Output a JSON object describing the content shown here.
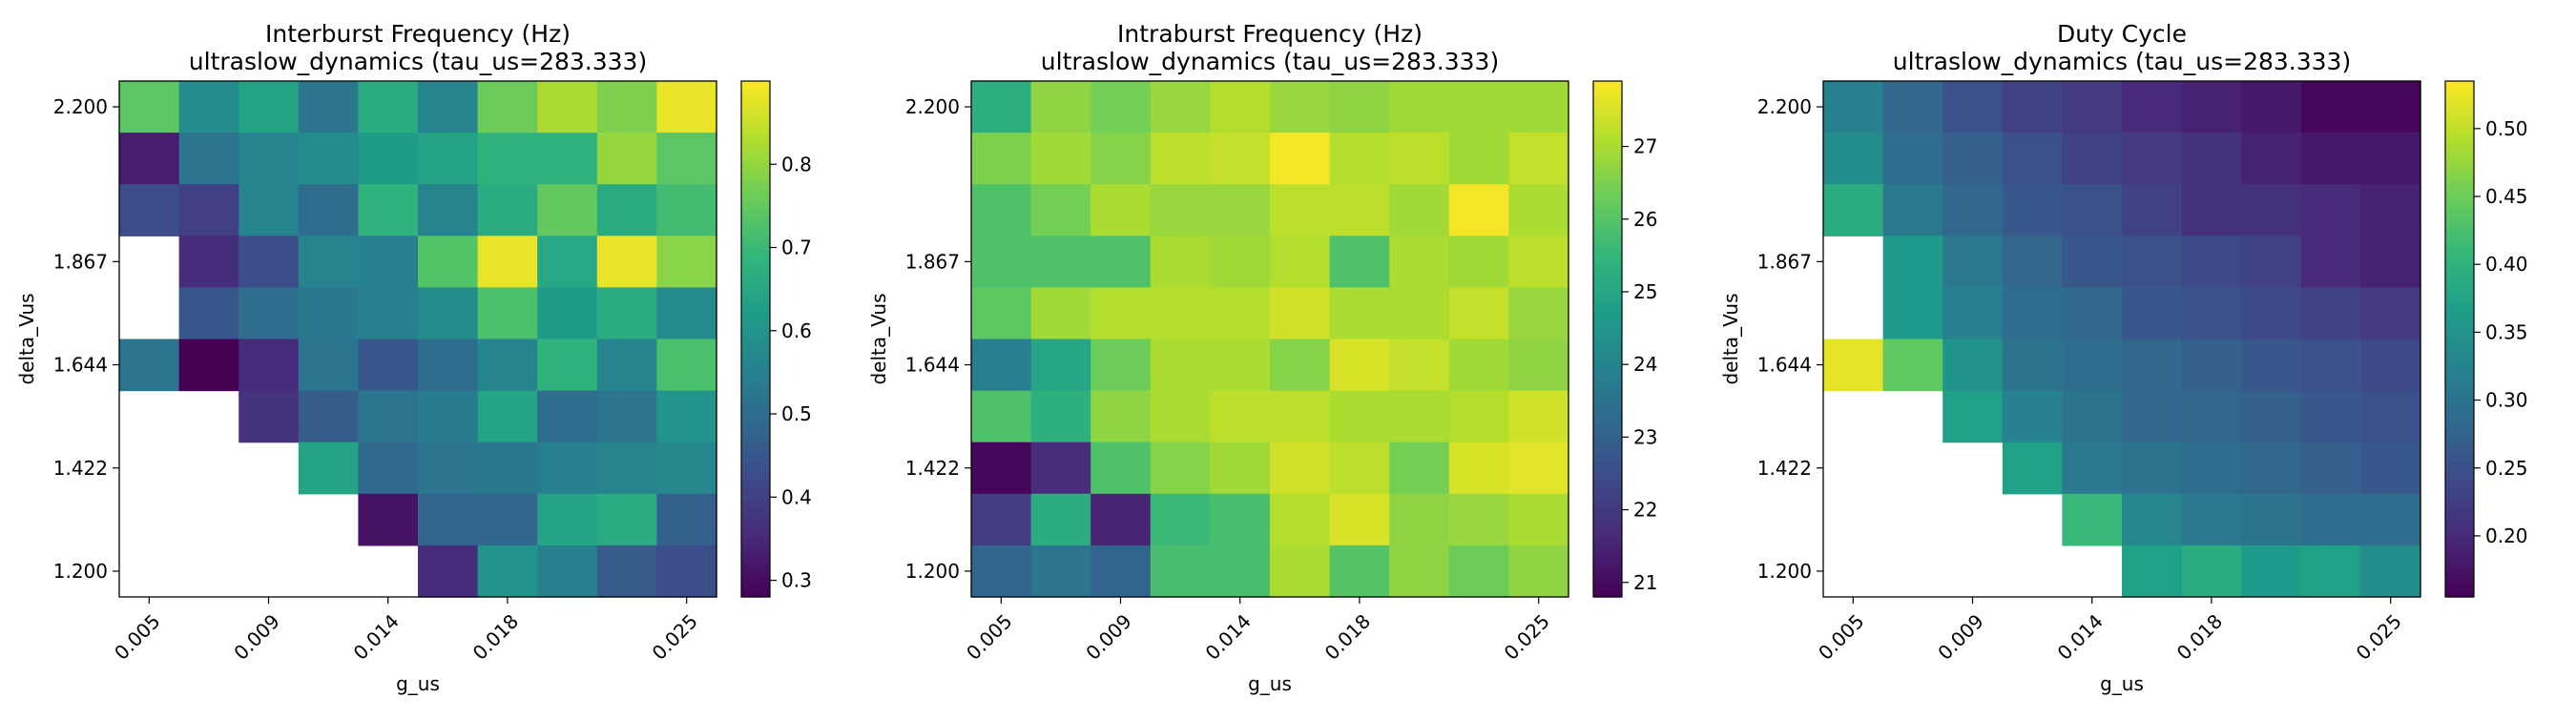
{
  "figure": {
    "xlabel": "g_us",
    "ylabel": "delta_Vus",
    "x_tick_labels": [
      "0.005",
      "0.009",
      "0.014",
      "0.018",
      "0.025"
    ],
    "x_tick_columns": [
      0,
      2,
      4,
      6,
      9
    ],
    "y_tick_labels": [
      "2.200",
      "1.867",
      "1.644",
      "1.422",
      "1.200"
    ],
    "y_tick_rows": [
      0,
      3,
      5,
      7,
      9
    ],
    "colormap": "viridis"
  },
  "chart_data": [
    {
      "type": "heatmap",
      "title": "Interburst Frequency (Hz)",
      "subtitle": "ultraslow_dynamics (tau_us=283.333)",
      "xlabel": "g_us",
      "ylabel": "delta_Vus",
      "columns": 10,
      "rows": 10,
      "row_order": "top row = delta_Vus 2.200, bottom row = delta_Vus 1.200",
      "vmin": 0.28,
      "vmax": 0.9,
      "colorbar_ticks": [
        0.3,
        0.4,
        0.5,
        0.6,
        0.7,
        0.8
      ],
      "colorbar_labels": [
        "0.3",
        "0.4",
        "0.5",
        "0.6",
        "0.7",
        "0.8"
      ],
      "missing": "blank cells (null)",
      "values": [
        [
          0.74,
          0.58,
          0.64,
          0.52,
          0.66,
          0.56,
          0.76,
          0.82,
          0.78,
          0.88
        ],
        [
          0.33,
          0.52,
          0.56,
          0.58,
          0.62,
          0.64,
          0.68,
          0.68,
          0.8,
          0.74
        ],
        [
          0.43,
          0.4,
          0.56,
          0.5,
          0.68,
          0.56,
          0.66,
          0.75,
          0.66,
          0.71
        ],
        [
          null,
          0.36,
          0.43,
          0.56,
          0.55,
          0.73,
          0.88,
          0.65,
          0.88,
          0.79
        ],
        [
          null,
          0.45,
          0.5,
          0.53,
          0.55,
          0.58,
          0.72,
          0.62,
          0.66,
          0.58
        ],
        [
          0.52,
          0.28,
          0.36,
          0.52,
          0.45,
          0.5,
          0.56,
          0.68,
          0.56,
          0.72
        ],
        [
          null,
          null,
          0.37,
          0.46,
          0.52,
          0.54,
          0.64,
          0.5,
          0.52,
          0.6
        ],
        [
          null,
          null,
          null,
          0.64,
          0.49,
          0.52,
          0.53,
          0.55,
          0.56,
          0.57
        ],
        [
          null,
          null,
          null,
          null,
          0.31,
          0.48,
          0.48,
          0.64,
          0.66,
          0.47
        ],
        [
          null,
          null,
          null,
          null,
          null,
          0.36,
          0.6,
          0.55,
          0.46,
          0.43
        ]
      ]
    },
    {
      "type": "heatmap",
      "title": "Intraburst Frequency (Hz)",
      "subtitle": "ultraslow_dynamics (tau_us=283.333)",
      "xlabel": "g_us",
      "ylabel": "delta_Vus",
      "columns": 10,
      "rows": 10,
      "row_order": "top row = delta_Vus 2.200, bottom row = delta_Vus 1.200",
      "vmin": 20.8,
      "vmax": 27.9,
      "colorbar_ticks": [
        21,
        22,
        23,
        24,
        25,
        26,
        27
      ],
      "colorbar_labels": [
        "21",
        "22",
        "23",
        "24",
        "25",
        "26",
        "27"
      ],
      "missing": "none",
      "values": [
        [
          25.3,
          26.7,
          26.4,
          26.8,
          27.1,
          26.8,
          26.7,
          26.9,
          26.9,
          26.9
        ],
        [
          26.5,
          26.9,
          26.6,
          27.2,
          27.3,
          27.8,
          27.1,
          27.2,
          26.9,
          27.3
        ],
        [
          25.9,
          26.4,
          27.0,
          26.8,
          26.8,
          27.2,
          27.2,
          26.9,
          27.8,
          27.0
        ],
        [
          25.9,
          25.9,
          25.9,
          27.0,
          26.9,
          27.1,
          25.9,
          27.0,
          26.9,
          27.2
        ],
        [
          26.1,
          26.9,
          27.1,
          27.1,
          27.1,
          27.4,
          27.0,
          27.0,
          27.3,
          26.8
        ],
        [
          23.8,
          25.0,
          26.3,
          27.0,
          27.0,
          26.6,
          27.5,
          27.3,
          26.9,
          26.7
        ],
        [
          25.9,
          25.3,
          26.7,
          27.0,
          27.2,
          27.2,
          27.0,
          27.0,
          27.1,
          27.4
        ],
        [
          20.9,
          21.7,
          25.9,
          26.6,
          26.9,
          27.4,
          27.2,
          26.4,
          27.5,
          27.6
        ],
        [
          22.1,
          25.2,
          21.5,
          25.6,
          25.8,
          27.1,
          27.5,
          26.7,
          26.8,
          27.0
        ],
        [
          23.1,
          23.6,
          23.1,
          25.8,
          25.8,
          27.0,
          26.0,
          26.7,
          26.3,
          26.7
        ]
      ]
    },
    {
      "type": "heatmap",
      "title": "Duty Cycle",
      "subtitle": "ultraslow_dynamics (tau_us=283.333)",
      "xlabel": "g_us",
      "ylabel": "delta_Vus",
      "columns": 10,
      "rows": 10,
      "row_order": "top row = delta_Vus 2.200, bottom row = delta_Vus 1.200",
      "vmin": 0.155,
      "vmax": 0.535,
      "colorbar_ticks": [
        0.2,
        0.25,
        0.3,
        0.35,
        0.4,
        0.45,
        0.5
      ],
      "colorbar_labels": [
        "0.20",
        "0.25",
        "0.30",
        "0.35",
        "0.40",
        "0.45",
        "0.50"
      ],
      "missing": "blank cells (null)",
      "values": [
        [
          0.32,
          0.28,
          0.25,
          0.23,
          0.22,
          0.2,
          0.19,
          0.18,
          0.16,
          0.16
        ],
        [
          0.34,
          0.29,
          0.27,
          0.25,
          0.23,
          0.22,
          0.21,
          0.19,
          0.18,
          0.18
        ],
        [
          0.39,
          0.31,
          0.28,
          0.26,
          0.25,
          0.23,
          0.21,
          0.21,
          0.2,
          0.19
        ],
        [
          null,
          0.36,
          0.31,
          0.28,
          0.26,
          0.25,
          0.24,
          0.23,
          0.2,
          0.19
        ],
        [
          null,
          0.36,
          0.32,
          0.29,
          0.28,
          0.26,
          0.25,
          0.24,
          0.23,
          0.22
        ],
        [
          0.52,
          0.44,
          0.35,
          0.3,
          0.29,
          0.28,
          0.27,
          0.26,
          0.25,
          0.24
        ],
        [
          null,
          null,
          0.37,
          0.32,
          0.3,
          0.28,
          0.28,
          0.27,
          0.26,
          0.25
        ],
        [
          null,
          null,
          null,
          0.37,
          0.31,
          0.3,
          0.29,
          0.28,
          0.27,
          0.26
        ],
        [
          null,
          null,
          null,
          null,
          0.41,
          0.33,
          0.31,
          0.3,
          0.29,
          0.29
        ],
        [
          null,
          null,
          null,
          null,
          null,
          0.37,
          0.39,
          0.36,
          0.37,
          0.34
        ]
      ]
    }
  ]
}
